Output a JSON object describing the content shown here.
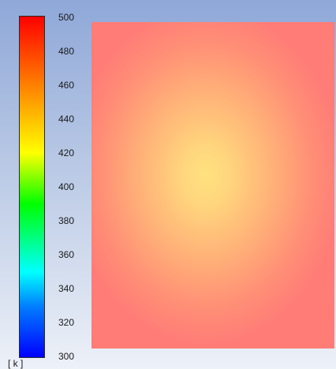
{
  "legend": {
    "ticks": [
      "500",
      "480",
      "460",
      "440",
      "420",
      "400",
      "380",
      "360",
      "340",
      "320",
      "300"
    ],
    "unit": "[ k ]",
    "colors": [
      "#ff0000",
      "#ff7f00",
      "#ffff00",
      "#00ff00",
      "#00ffff",
      "#007fff",
      "#0000ff"
    ]
  },
  "plot": {
    "center_color": "#ffe27f",
    "edge_color": "#ff7c77"
  }
}
